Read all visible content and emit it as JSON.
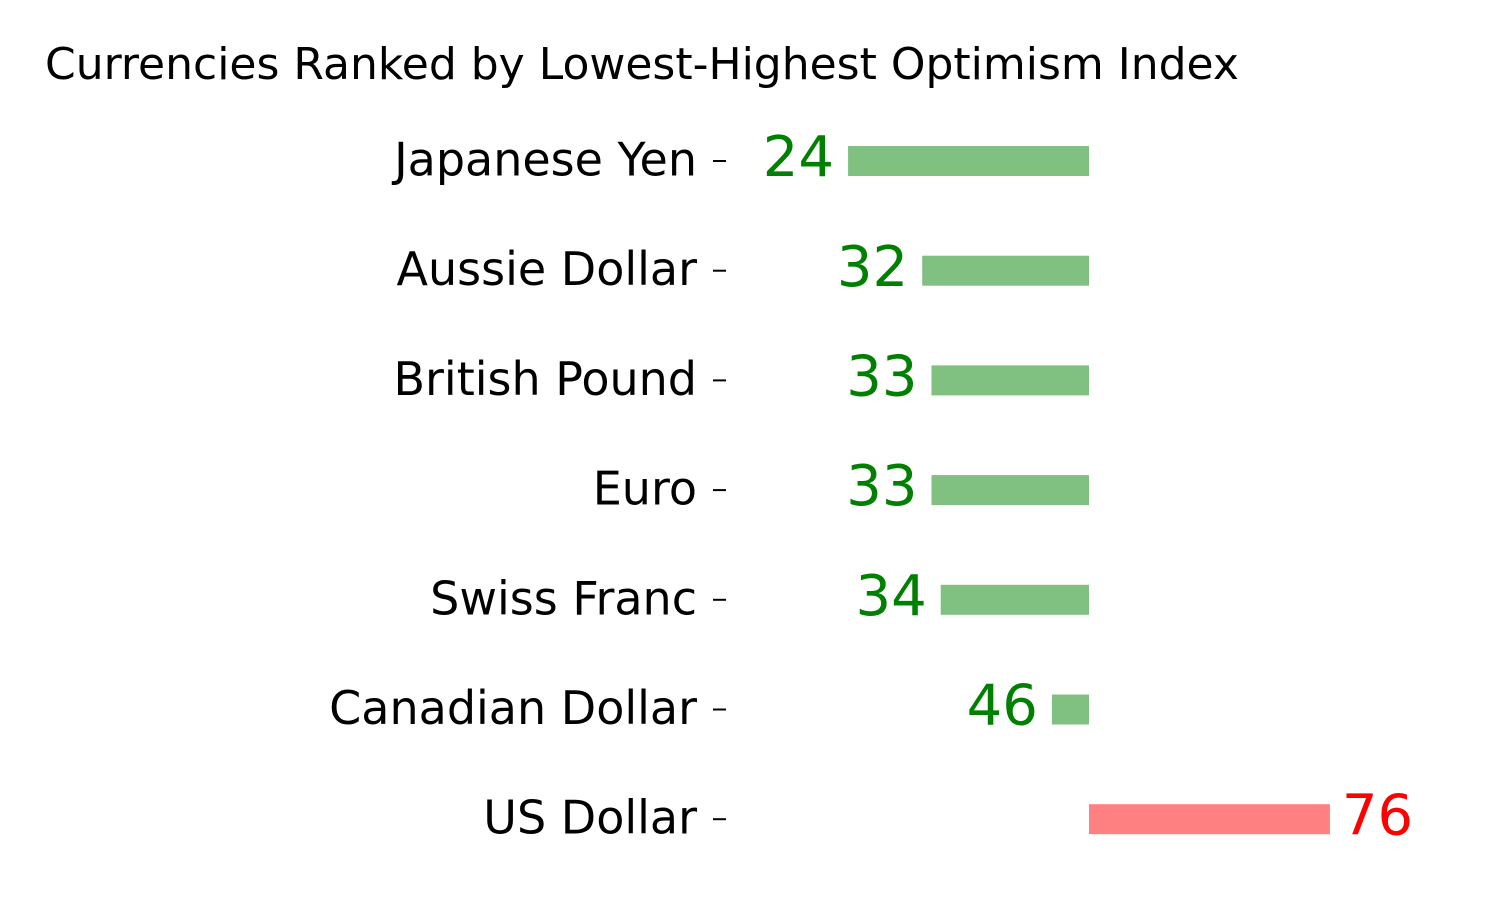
{
  "chart_data": {
    "type": "diverging-bar",
    "orientation": "horizontal",
    "title": "Currencies Ranked by Lowest-Highest Optimism Index",
    "categories": [
      "Japanese Yen",
      "Aussie Dollar",
      "British Pound",
      "Euro",
      "Swiss Franc",
      "Canadian Dollar",
      "US Dollar"
    ],
    "values": [
      24,
      32,
      33,
      33,
      34,
      46,
      76
    ],
    "base": 50,
    "xlim": [
      20,
      80
    ],
    "colors": [
      "#80c080",
      "#80c080",
      "#80c080",
      "#80c080",
      "#80c080",
      "#80c080",
      "#ff8080"
    ],
    "label_colors": [
      "#008000",
      "#008000",
      "#008000",
      "#008000",
      "#008000",
      "#008000",
      "#ff0000"
    ]
  }
}
